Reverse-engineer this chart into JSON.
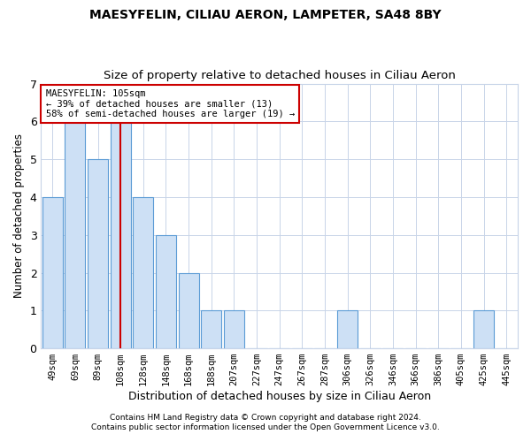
{
  "title": "MAESYFELIN, CILIAU AERON, LAMPETER, SA48 8BY",
  "subtitle": "Size of property relative to detached houses in Ciliau Aeron",
  "xlabel": "Distribution of detached houses by size in Ciliau Aeron",
  "ylabel": "Number of detached properties",
  "categories": [
    "49sqm",
    "69sqm",
    "89sqm",
    "108sqm",
    "128sqm",
    "148sqm",
    "168sqm",
    "188sqm",
    "207sqm",
    "227sqm",
    "247sqm",
    "267sqm",
    "287sqm",
    "306sqm",
    "326sqm",
    "346sqm",
    "366sqm",
    "386sqm",
    "405sqm",
    "425sqm",
    "445sqm"
  ],
  "values": [
    4,
    6,
    5,
    6,
    4,
    3,
    2,
    1,
    1,
    0,
    0,
    0,
    0,
    1,
    0,
    0,
    0,
    0,
    0,
    1,
    0
  ],
  "bar_color": "#cde0f5",
  "bar_edge_color": "#5b9bd5",
  "marker_index": 3,
  "marker_color": "#cc0000",
  "ylim": [
    0,
    7
  ],
  "yticks": [
    0,
    1,
    2,
    3,
    4,
    5,
    6,
    7
  ],
  "annotation_title": "MAESYFELIN: 105sqm",
  "annotation_line1": "← 39% of detached houses are smaller (13)",
  "annotation_line2": "58% of semi-detached houses are larger (19) →",
  "footer1": "Contains HM Land Registry data © Crown copyright and database right 2024.",
  "footer2": "Contains public sector information licensed under the Open Government Licence v3.0.",
  "bg_color": "#ffffff",
  "grid_color": "#c8d4e8",
  "title_fontsize": 10,
  "subtitle_fontsize": 9.5,
  "annotation_box_edge_color": "#cc0000",
  "bar_width": 0.9
}
